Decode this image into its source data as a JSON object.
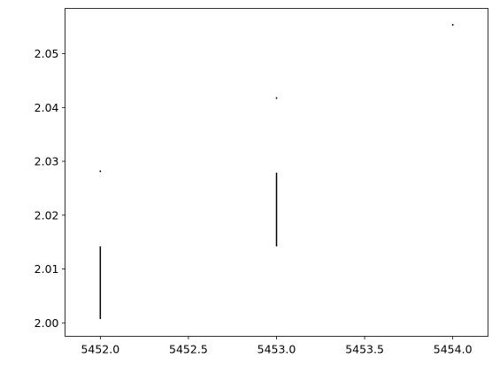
{
  "chart_data": {
    "type": "vlines",
    "title": "",
    "xlabel": "",
    "ylabel": "",
    "xlim": [
      5451.8,
      5454.2
    ],
    "ylim": [
      1.9975,
      2.0584
    ],
    "xticks": [
      5452.0,
      5452.5,
      5453.0,
      5453.5,
      5454.0
    ],
    "xtick_labels": [
      "5452.0",
      "5452.5",
      "5453.0",
      "5453.5",
      "5454.0"
    ],
    "yticks": [
      2.0,
      2.01,
      2.02,
      2.03,
      2.04,
      2.05
    ],
    "ytick_labels": [
      "2.00",
      "2.01",
      "2.02",
      "2.03",
      "2.04",
      "2.05"
    ],
    "grid": false,
    "color": "#000000",
    "series": [
      {
        "segments": [
          {
            "x": 5452.0,
            "y0": 2.0007,
            "y1": 2.0142
          },
          {
            "x": 5452.0,
            "y0": 2.028,
            "y1": 2.0283
          },
          {
            "x": 5453.0,
            "y0": 2.0142,
            "y1": 2.0279
          },
          {
            "x": 5453.0,
            "y0": 2.0416,
            "y1": 2.0419
          },
          {
            "x": 5454.0,
            "y0": 2.0552,
            "y1": 2.0555
          }
        ]
      }
    ]
  }
}
